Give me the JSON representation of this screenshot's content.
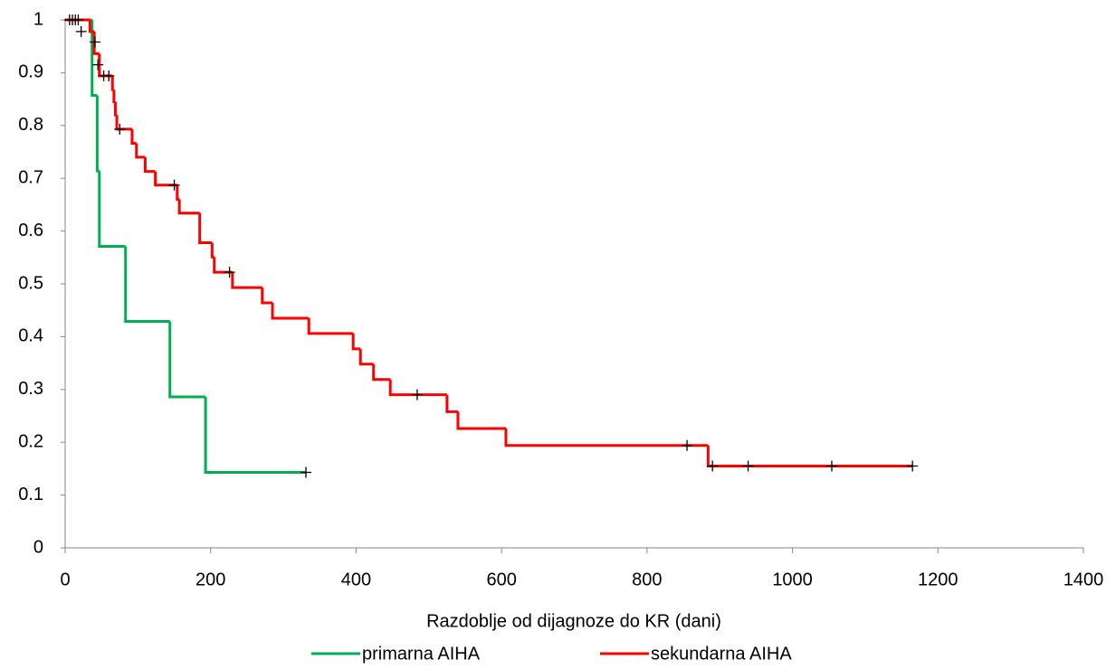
{
  "chart_data": {
    "type": "step",
    "x_label": "Razdoblje od dijagnoze do KR (dani)",
    "xlim": [
      0,
      1400
    ],
    "xticks": [
      0,
      200,
      400,
      600,
      800,
      1000,
      1200,
      1400
    ],
    "ylim": [
      0,
      1
    ],
    "yticks": [
      0,
      0.1,
      0.2,
      0.3,
      0.4,
      0.5,
      0.6,
      0.7,
      0.8,
      0.9,
      1
    ],
    "censor_color": "#000000",
    "series": [
      {
        "name": "primarna AIHA",
        "color": "#00b050",
        "x": [
          0,
          37,
          44,
          47,
          83,
          144,
          193
        ],
        "values": [
          1,
          0.857,
          0.714,
          0.571,
          0.429,
          0.286,
          0.143
        ],
        "censored_x": [
          331
        ],
        "censored_values": [
          0.143
        ]
      },
      {
        "name": "sekundarna AIHA",
        "color": "#ff0000",
        "x": [
          0,
          34,
          40,
          47,
          65,
          67,
          69,
          71,
          92,
          98,
          110,
          124,
          154,
          157,
          185,
          202,
          205,
          230,
          271,
          285,
          335,
          396,
          406,
          424,
          447,
          525,
          540,
          606,
          884
        ],
        "values": [
          1,
          0.978,
          0.936,
          0.894,
          0.868,
          0.845,
          0.82,
          0.793,
          0.766,
          0.74,
          0.713,
          0.687,
          0.66,
          0.634,
          0.578,
          0.551,
          0.522,
          0.493,
          0.464,
          0.435,
          0.406,
          0.377,
          0.348,
          0.319,
          0.29,
          0.258,
          0.226,
          0.194,
          0.155
        ],
        "censored_x": [
          6,
          10,
          14,
          18,
          22,
          41,
          45,
          53,
          60,
          75,
          150,
          226,
          484,
          855,
          890,
          939,
          1054,
          1165
        ],
        "censored_values": [
          1,
          1,
          1,
          1,
          0.978,
          0.958,
          0.915,
          0.894,
          0.894,
          0.793,
          0.687,
          0.522,
          0.29,
          0.194,
          0.155,
          0.155,
          0.155,
          0.155
        ]
      }
    ]
  }
}
